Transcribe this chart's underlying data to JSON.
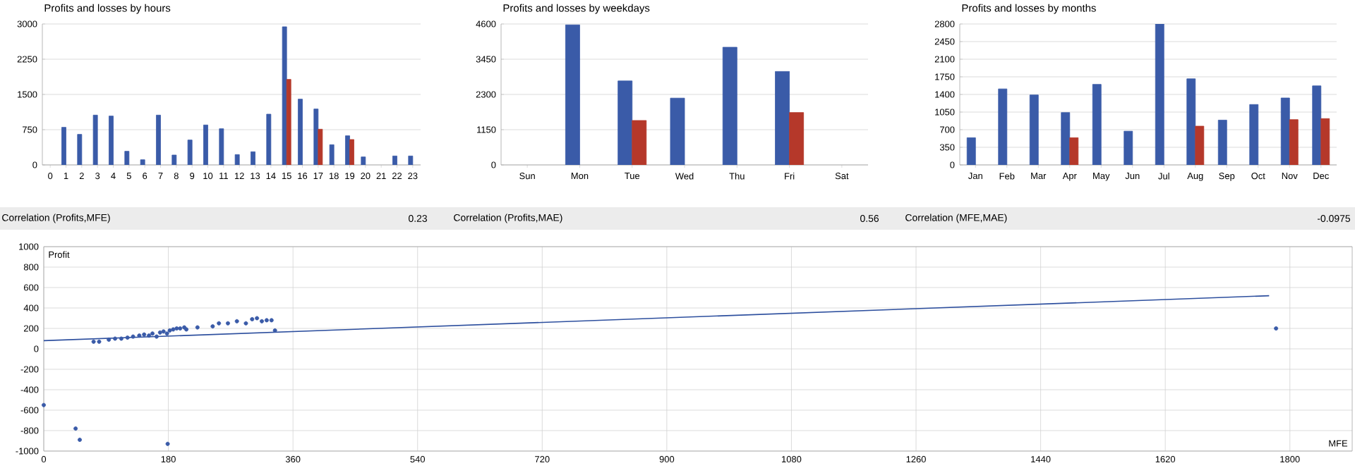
{
  "chart_data": [
    {
      "type": "bar",
      "title": "Profits and losses by hours",
      "categories": [
        "0",
        "1",
        "2",
        "3",
        "4",
        "5",
        "6",
        "7",
        "8",
        "9",
        "10",
        "11",
        "12",
        "13",
        "14",
        "15",
        "16",
        "17",
        "18",
        "19",
        "20",
        "21",
        "22",
        "23"
      ],
      "series": [
        {
          "color": "#3a5ba8",
          "values": [
            null,
            800,
            650,
            1060,
            1040,
            290,
            110,
            1060,
            210,
            530,
            850,
            770,
            220,
            280,
            1080,
            2940,
            1400,
            1190,
            430,
            620,
            170,
            null,
            190,
            190
          ]
        },
        {
          "color": "#b5382a",
          "values": [
            null,
            null,
            null,
            null,
            null,
            null,
            null,
            null,
            null,
            null,
            null,
            null,
            null,
            null,
            null,
            1820,
            null,
            760,
            null,
            540,
            null,
            null,
            null,
            null
          ]
        }
      ],
      "ylim": [
        0,
        3000
      ],
      "yticks": [
        0,
        750,
        1500,
        2250,
        3000
      ],
      "grid": "y"
    },
    {
      "type": "bar",
      "title": "Profits and losses by weekdays",
      "categories": [
        "Sun",
        "Mon",
        "Tue",
        "Wed",
        "Thu",
        "Fri",
        "Sat"
      ],
      "series": [
        {
          "color": "#3a5ba8",
          "values": [
            null,
            4570,
            2740,
            2180,
            3840,
            3050,
            null
          ]
        },
        {
          "color": "#b5382a",
          "values": [
            null,
            null,
            1450,
            null,
            null,
            1710,
            null
          ]
        }
      ],
      "ylim": [
        0,
        4600
      ],
      "yticks": [
        0,
        1150,
        2300,
        3450,
        4600
      ],
      "grid": "y"
    },
    {
      "type": "bar",
      "title": "Profits and losses by months",
      "categories": [
        "Jan",
        "Feb",
        "Mar",
        "Apr",
        "May",
        "Jun",
        "Jul",
        "Aug",
        "Sep",
        "Oct",
        "Nov",
        "Dec"
      ],
      "series": [
        {
          "color": "#3a5ba8",
          "values": [
            540,
            1510,
            1390,
            1040,
            1600,
            670,
            2800,
            1710,
            890,
            1200,
            1330,
            1570
          ]
        },
        {
          "color": "#b5382a",
          "values": [
            null,
            null,
            null,
            540,
            null,
            null,
            null,
            770,
            null,
            null,
            900,
            920
          ]
        }
      ],
      "ylim": [
        0,
        2800
      ],
      "yticks": [
        0,
        350,
        700,
        1050,
        1400,
        1750,
        2100,
        2450,
        2800
      ],
      "grid": "y"
    },
    {
      "type": "other",
      "annotations": [
        "Correlation (Profits,MFE)",
        "0.23",
        "Correlation (Profits,MAE)",
        "0.56",
        "Correlation (MFE,MAE)",
        "-0.0975"
      ]
    },
    {
      "type": "scatter",
      "xlabel": "MFE",
      "ylabel": "Profit",
      "xlim": [
        0,
        1890
      ],
      "ylim": [
        -1000,
        1000
      ],
      "xticks": [
        0,
        180,
        360,
        540,
        720,
        900,
        1080,
        1260,
        1440,
        1620,
        1800
      ],
      "yticks": [
        -1000,
        -800,
        -600,
        -400,
        -200,
        0,
        200,
        400,
        600,
        800,
        1000
      ],
      "grid": true,
      "marker": "circle",
      "series": [
        {
          "type": "scatter",
          "color": "#3a5ba8",
          "x": [
            0,
            46,
            52,
            179,
            72,
            80,
            94,
            103,
            112,
            121,
            129,
            138,
            145,
            152,
            157,
            163,
            168,
            173,
            178,
            182,
            187,
            192,
            197,
            203,
            206,
            222,
            244,
            253,
            266,
            279,
            292,
            301,
            308,
            315,
            322,
            329,
            334,
            1780
          ],
          "values": [
            -550,
            -780,
            -890,
            -930,
            70,
            70,
            90,
            100,
            100,
            110,
            120,
            130,
            140,
            130,
            150,
            120,
            160,
            170,
            150,
            180,
            190,
            200,
            200,
            210,
            190,
            210,
            220,
            250,
            250,
            270,
            250,
            290,
            300,
            270,
            280,
            280,
            180,
            200
          ]
        },
        {
          "type": "line",
          "marker": "none",
          "color": "#2d4f9e",
          "x": [
            0,
            1770
          ],
          "values": [
            80,
            520
          ]
        }
      ]
    }
  ]
}
